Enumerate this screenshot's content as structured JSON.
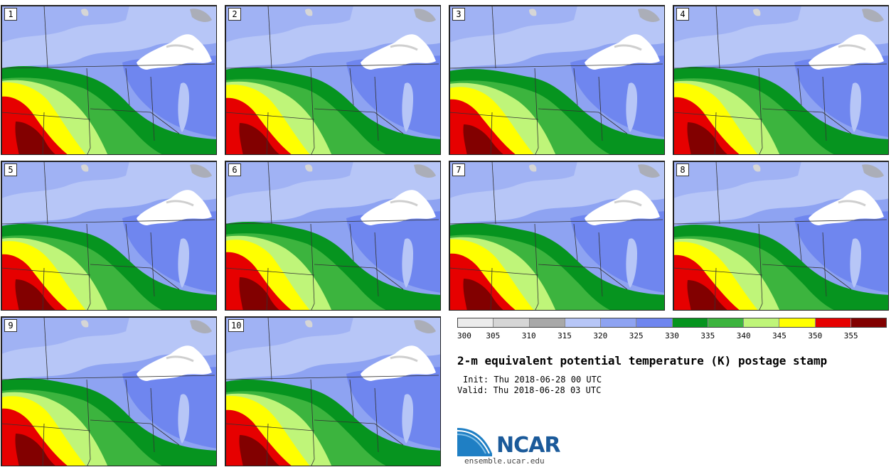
{
  "panels": [
    {
      "label": "1"
    },
    {
      "label": "2"
    },
    {
      "label": "3"
    },
    {
      "label": "4"
    },
    {
      "label": "5"
    },
    {
      "label": "6"
    },
    {
      "label": "7"
    },
    {
      "label": "8"
    },
    {
      "label": "9"
    },
    {
      "label": "10"
    }
  ],
  "legend": {
    "ticks": [
      "300",
      "305",
      "310",
      "315",
      "320",
      "325",
      "330",
      "335",
      "340",
      "345",
      "350",
      "355"
    ],
    "colors": [
      "#ececec",
      "#d6d6d6",
      "#a8a8a8",
      "#b7c6f7",
      "#8ea3f2",
      "#6f86ef",
      "#06941f",
      "#3cb43e",
      "#bff579",
      "#ffff00",
      "#e60000",
      "#820000"
    ]
  },
  "title": "2-m equivalent potential temperature (K) postage stamp",
  "init": "Init: Thu 2018-06-28 00 UTC",
  "valid": "Valid: Thu 2018-06-28 03 UTC",
  "logo": {
    "name": "NCAR",
    "url": "ensemble.ucar.edu"
  }
}
